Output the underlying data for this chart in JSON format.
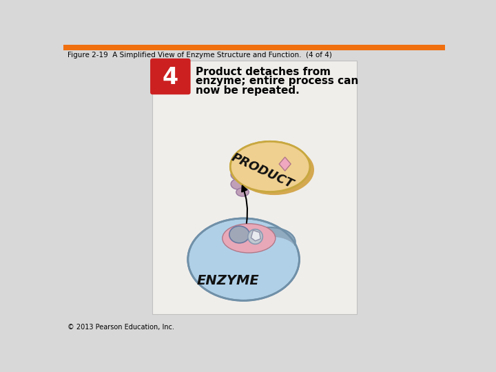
{
  "title": "Figure 2-19  A Simplified View of Enzyme Structure and Function.  (4 of 4)",
  "copyright": "© 2013 Pearson Education, Inc.",
  "step_number": "4",
  "step_color": "#cc2020",
  "description": "Product detaches from\nenzyme; entire process can\nnow be repeated.",
  "bg_top_bar": "#f07010",
  "bg_main": "#d8d8d8",
  "panel_bg": "#f0eeeb",
  "panel_border": "#c0c0c0",
  "enzyme_color": "#b0d0e8",
  "enzyme_border": "#7090a8",
  "enzyme_rim_color": "#90aabf",
  "active_site_pink": "#e8a8b8",
  "product_body_color": "#f0d090",
  "product_body_border": "#c8a840",
  "product_label": "PRODUCT",
  "enzyme_label": "ENZYME",
  "product_diamond_color": "#f0a8c0",
  "lobe_color": "#c0a0b8",
  "lobe_border": "#9878a0",
  "gray_notch_color": "#a0a8b8",
  "gray_notch2_color": "#c0c8d0",
  "white_shape_color": "#e8eaf0"
}
